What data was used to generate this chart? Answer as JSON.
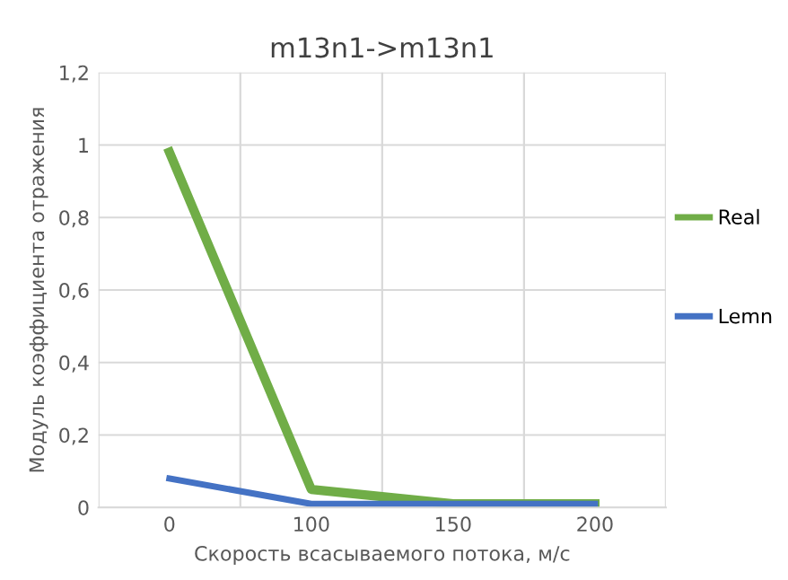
{
  "chart_data": {
    "type": "line",
    "title": "m13n1->m13n1",
    "xlabel": "Скорость всасываемого потока, м/с",
    "ylabel": "Модуль коэффициента отражения",
    "categories": [
      "0",
      "100",
      "150",
      "200"
    ],
    "series": [
      {
        "name": "Real",
        "color": "#70ad47",
        "values": [
          0.98,
          0.05,
          0.01,
          0.01
        ]
      },
      {
        "name": "Lemn",
        "color": "#4472c4",
        "values": [
          0.08,
          0.01,
          0.01,
          0.01
        ]
      }
    ],
    "ylim": [
      0,
      1.2
    ],
    "yticks": [
      0,
      {
        "value": 0.2,
        "label": "0,2"
      },
      {
        "value": 0.4,
        "label": "0,4"
      },
      {
        "value": 0.6,
        "label": "0,6"
      },
      {
        "value": 0.8,
        "label": "0,8"
      },
      1,
      {
        "value": 1.2,
        "label": "1,2"
      }
    ],
    "grid": true,
    "legend": "right",
    "marker": "none",
    "line_style": "solid"
  }
}
